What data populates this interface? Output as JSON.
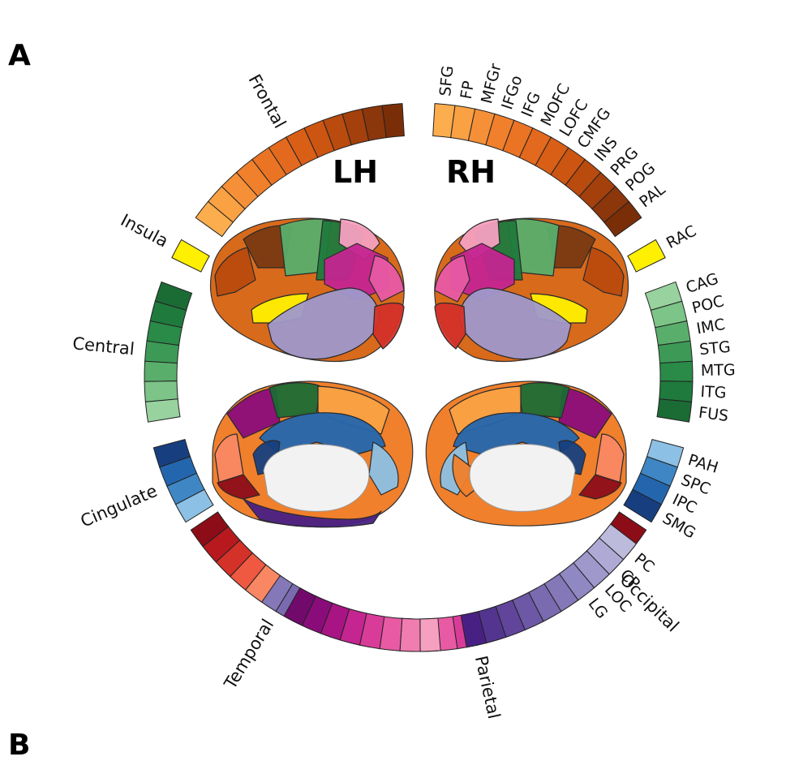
{
  "panels": {
    "a": "A",
    "b": "B"
  },
  "hemispheres": {
    "left": "LH",
    "right": "RH"
  },
  "left_groups": [
    {
      "name": "Frontal",
      "colors": [
        "#7a2e08",
        "#8c360b",
        "#a3400c",
        "#b94b0e",
        "#cc5512",
        "#d95f17",
        "#e3691e",
        "#ea7424",
        "#f0802c",
        "#f59038",
        "#f9a143",
        "#fcad4d"
      ]
    },
    {
      "name": "Insula",
      "colors": [
        "#ffef00"
      ]
    },
    {
      "name": "Central",
      "colors": [
        "#1b6b35",
        "#1f7a3d",
        "#2a8a48",
        "#3d9a56",
        "#5aae6c",
        "#7cc487",
        "#98d29e"
      ]
    },
    {
      "name": "Cingulate",
      "colors": [
        "#173f7f",
        "#2466ae",
        "#3f87c4",
        "#8cc0e4"
      ]
    },
    {
      "name": "Temporal",
      "colors": [
        "#bdbbdb",
        "#afaad5",
        "#9f98cb",
        "#9088c2",
        "#8578b8",
        "#7a6bb0",
        "#6d58a6",
        "#60459b",
        "#533590",
        "#482084"
      ]
    },
    {
      "name": "Parietal",
      "colors": [
        "#f5a0c0",
        "#ef7db0",
        "#e85aa4",
        "#d93c98",
        "#c42590",
        "#a81484",
        "#8a0c7a",
        "#720a6c"
      ]
    },
    {
      "name": "Occipital",
      "colors": [
        "#f98763",
        "#ef5841",
        "#d43128",
        "#b7191f",
        "#8c0d18"
      ]
    }
  ],
  "right_groups": [
    {
      "name": "Frontal",
      "colors": [
        "#fcad4d",
        "#f9a143",
        "#f59038",
        "#f0802c",
        "#ea7424",
        "#e3691e",
        "#d95f17",
        "#cc5512",
        "#b94b0e",
        "#a3400c",
        "#8c360b",
        "#7a2e08"
      ]
    },
    {
      "name": "Insula",
      "colors": [
        "#ffef00"
      ]
    },
    {
      "name": "Central",
      "colors": [
        "#98d29e",
        "#7cc487",
        "#5aae6c",
        "#3d9a56",
        "#2a8a48",
        "#1f7a3d",
        "#1b6b35"
      ]
    },
    {
      "name": "Cingulate",
      "colors": [
        "#8cc0e4",
        "#3f87c4",
        "#2466ae",
        "#173f7f"
      ]
    },
    {
      "name": "Temporal",
      "colors": [
        "#bdbbdb",
        "#afaad5",
        "#9f98cb",
        "#9088c2",
        "#8578b8",
        "#7a6bb0",
        "#6d58a6",
        "#60459b",
        "#533590",
        "#482084"
      ]
    },
    {
      "name": "Parietal",
      "colors": [
        "#f5a0c0",
        "#ef7db0",
        "#e85aa4",
        "#d93c98",
        "#c42590",
        "#a81484",
        "#8a0c7a",
        "#720a6c"
      ]
    },
    {
      "name": "Occipital",
      "colors": [
        "#f98763",
        "#ef5841",
        "#d43128",
        "#b7191f",
        "#8c0d18"
      ]
    }
  ],
  "right_region_labels": [
    "SFG",
    "FP",
    "MFGr",
    "IFGo",
    "IFG",
    "MOFC",
    "LOFC",
    "CMFG",
    "INS",
    "PRG",
    "POG",
    "PAL",
    "RAC",
    "CAG",
    "POC",
    "IMC",
    "STG",
    "MTG",
    "ITG",
    "FUS",
    "PAH",
    "SPC",
    "IPC",
    "SMG",
    "PC",
    "CP",
    "LOC",
    "LG"
  ]
}
